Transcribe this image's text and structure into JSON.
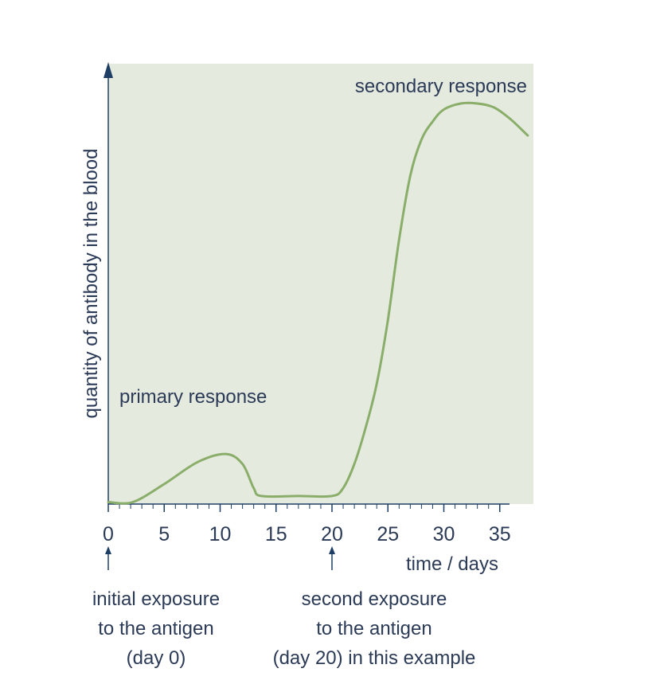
{
  "chart_data": {
    "type": "line",
    "xlabel": "time / days",
    "ylabel": "quantity of antibody in the blood",
    "xlim": [
      0,
      37.5
    ],
    "xticks": [
      0,
      5,
      10,
      15,
      20,
      25,
      30,
      35
    ],
    "xtick_labels": [
      "0",
      "5",
      "10",
      "15",
      "20",
      "25",
      "30",
      "35"
    ],
    "y_scale": "qualitative (no numeric ticks)",
    "grid": false,
    "series": [
      {
        "x": [
          0,
          2.2,
          5,
          8,
          10.5,
          12,
          13,
          13.7,
          17,
          20,
          21,
          22,
          23,
          24,
          25,
          26,
          27,
          28,
          29,
          30,
          31.5,
          33,
          34.5,
          36,
          37.5
        ],
        "y": [
          0.005,
          0.005,
          0.05,
          0.105,
          0.125,
          0.1,
          0.04,
          0.02,
          0.02,
          0.02,
          0.04,
          0.1,
          0.19,
          0.3,
          0.46,
          0.66,
          0.82,
          0.91,
          0.955,
          0.985,
          1.0,
          1.0,
          0.99,
          0.96,
          0.92
        ]
      }
    ],
    "annotations": {
      "primary": "primary response",
      "secondary": "secondary response",
      "initial_exposure": [
        "initial exposure",
        "to the antigen",
        "(day 0)"
      ],
      "second_exposure": [
        "second exposure",
        "to the antigen",
        "(day 20) in this example"
      ]
    },
    "colors": {
      "plot_background": "#e5eadf",
      "curve": "#8aae6a",
      "axis": "#1f3e66",
      "text": "#2b3a57"
    }
  }
}
